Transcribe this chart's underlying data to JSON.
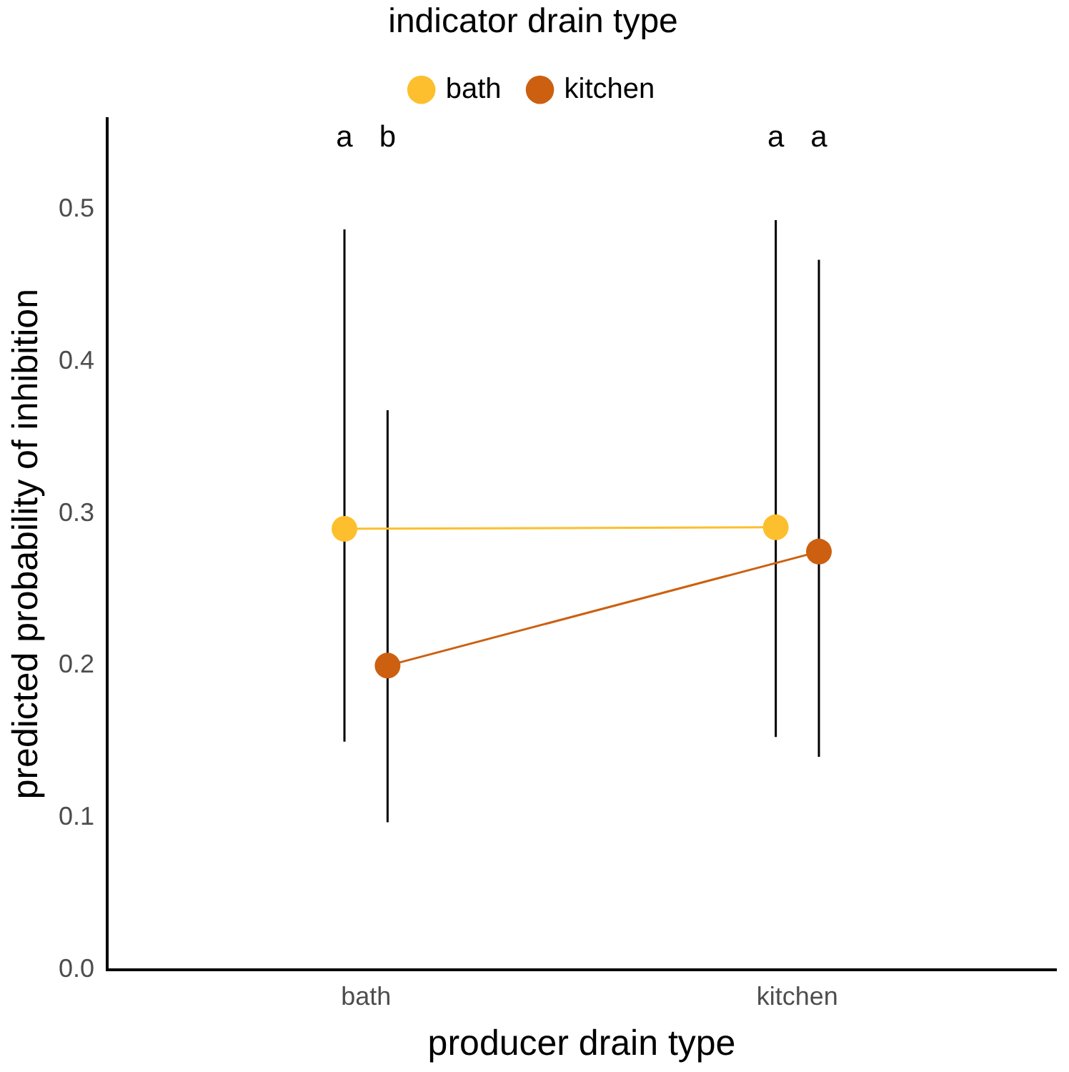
{
  "chart_data": {
    "type": "line",
    "xlabel": "producer drain type",
    "ylabel": "predicted probability of inhibition",
    "legend_title": "indicator drain type",
    "legend": "top",
    "marker": "circle",
    "grid": false,
    "categories": [
      "bath",
      "kitchen"
    ],
    "series": [
      {
        "name": "bath",
        "color": "#fdbf2d",
        "values": [
          0.29,
          0.291
        ],
        "errors": [
          [
            0.15,
            0.487
          ],
          [
            0.153,
            0.493
          ]
        ]
      },
      {
        "name": "kitchen",
        "color": "#cc6010",
        "values": [
          0.2,
          0.275
        ],
        "errors": [
          [
            0.097,
            0.368
          ],
          [
            0.14,
            0.467
          ]
        ]
      }
    ],
    "ylim": [
      0,
      0.56
    ],
    "yticks": [
      {
        "value": 0,
        "label": "0.0"
      },
      0.1,
      0.2,
      0.3,
      0.4,
      0.5
    ],
    "annotations": [
      "a",
      "b",
      "a",
      "a"
    ]
  }
}
